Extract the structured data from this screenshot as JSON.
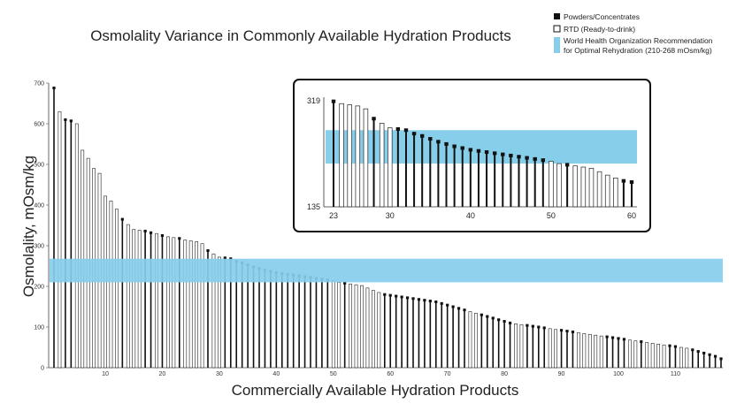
{
  "chart_data": {
    "type": "bar",
    "title": "Osmolality Variance in Commonly Available Hydration Products",
    "xlabel": "Commercially Available Hydration Products",
    "ylabel": "Osmolality, mOsm/kg",
    "ylim": [
      0,
      700
    ],
    "yticks": [
      0,
      100,
      200,
      300,
      400,
      500,
      600,
      700
    ],
    "xticks": [
      10,
      20,
      30,
      40,
      50,
      60,
      70,
      80,
      90,
      100,
      110
    ],
    "legend": [
      {
        "label": "Powders/Concentrates",
        "color": "#111111"
      },
      {
        "label": "RTD (Ready-to-drink)",
        "color": "#ffffff"
      },
      {
        "label": "World Health Organization Recommendation",
        "label2": "for Optimal Rehydration (210-268 mOsm/kg)",
        "color": "#87ceeb"
      }
    ],
    "who_band": [
      210,
      268
    ],
    "series": [
      {
        "name": "Osmolality (max)",
        "values": [
          688,
          630,
          610,
          607,
          600,
          535,
          515,
          490,
          478,
          422,
          410,
          390,
          365,
          352,
          340,
          338,
          336,
          332,
          330,
          325,
          322,
          320,
          318,
          314,
          312,
          310,
          305,
          288,
          280,
          272,
          270,
          268,
          262,
          258,
          253,
          248,
          244,
          240,
          237,
          234,
          232,
          230,
          228,
          226,
          224,
          222,
          220,
          218,
          216,
          214,
          210,
          208,
          206,
          204,
          202,
          196,
          190,
          185,
          180,
          178,
          176,
          174,
          172,
          170,
          168,
          166,
          164,
          162,
          158,
          154,
          150,
          146,
          142,
          138,
          134,
          130,
          126,
          122,
          118,
          114,
          110,
          108,
          106,
          104,
          102,
          100,
          98,
          96,
          94,
          92,
          90,
          88,
          86,
          84,
          82,
          80,
          78,
          76,
          74,
          72,
          70,
          68,
          66,
          64,
          62,
          60,
          58,
          56,
          54,
          52,
          50,
          48,
          44,
          40,
          36,
          32,
          28,
          22
        ]
      },
      {
        "name": "Product type",
        "values": [
          "P",
          "R",
          "P",
          "P",
          "R",
          "R",
          "R",
          "R",
          "R",
          "R",
          "R",
          "R",
          "P",
          "R",
          "R",
          "R",
          "P",
          "P",
          "R",
          "P",
          "R",
          "R",
          "P",
          "R",
          "R",
          "R",
          "R",
          "P",
          "R",
          "R",
          "P",
          "P",
          "P",
          "P",
          "P",
          "P",
          "P",
          "P",
          "P",
          "P",
          "P",
          "P",
          "P",
          "P",
          "P",
          "P",
          "P",
          "P",
          "P",
          "R",
          "R",
          "P",
          "R",
          "R",
          "R",
          "R",
          "R",
          "R",
          "P",
          "P",
          "P",
          "P",
          "P",
          "P",
          "P",
          "P",
          "P",
          "P",
          "P",
          "P",
          "P",
          "P",
          "P",
          "R",
          "R",
          "P",
          "P",
          "P",
          "P",
          "P",
          "P",
          "R",
          "R",
          "P",
          "P",
          "P",
          "P",
          "R",
          "R",
          "P",
          "P",
          "P",
          "R",
          "R",
          "R",
          "R",
          "R",
          "P",
          "P",
          "P",
          "P",
          "R",
          "R",
          "P",
          "R",
          "R",
          "R",
          "R",
          "P",
          "P",
          "R",
          "R",
          "P",
          "P",
          "P",
          "P",
          "P",
          "P"
        ]
      }
    ],
    "inset": {
      "ylim": [
        135,
        319
      ],
      "yticks": [
        135,
        319
      ],
      "xticks": [
        23,
        30,
        40,
        50,
        60
      ],
      "x_range": [
        23,
        60
      ]
    }
  }
}
